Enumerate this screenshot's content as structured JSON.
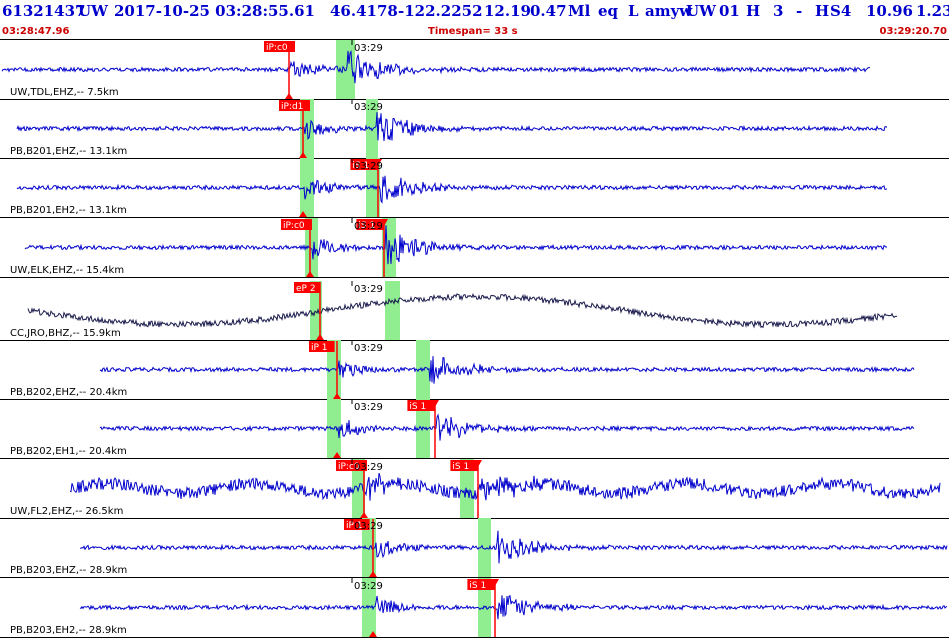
{
  "header": {
    "event_id": "61321437",
    "network": "UW",
    "origin_time": "2017-10-25 03:28:55.61",
    "latitude": "46.4178",
    "longitude": "-122.2252",
    "depth": "12.19",
    "magnitude": "0.47",
    "mag_type": "Ml",
    "event_type": "eq",
    "review": "L",
    "analyst": "amyw",
    "author_net": "UW",
    "version": "01",
    "gtype": "H",
    "npicks": "3",
    "dash": "-",
    "quality": "H",
    "solution": "S4",
    "gap": "10.96",
    "rms": "1.23"
  },
  "timebar": {
    "start": "03:28:47.96",
    "span": "Timespan=  33 s",
    "end": "03:29:20.70"
  },
  "colors": {
    "trace": "#0000cc",
    "trace_broadband": "#1a1a4d",
    "pick": "#ff0000",
    "window": "#90ee90",
    "header_text": "#0000cc",
    "timebar_text": "#cc0000",
    "separator": "#000000"
  },
  "tick_label": "03:29",
  "channels": [
    {
      "label": "UW,TDL,EHZ,-- 7.5km",
      "picks": [
        "iP:c0"
      ],
      "s_pick": "",
      "amp": "high"
    },
    {
      "label": "PB,B201,EHZ,-- 13.1km",
      "picks": [
        "iP:d1"
      ],
      "s_pick": "",
      "amp": "medium"
    },
    {
      "label": "PB,B201,EH2,-- 13.1km",
      "picks": [],
      "s_pick": "iS 1",
      "amp": "medium"
    },
    {
      "label": "UW,ELK,EHZ,-- 15.4km",
      "picks": [
        "iP:c0"
      ],
      "s_pick": "iS 1",
      "amp": "high"
    },
    {
      "label": "CC,JRO,BHZ,-- 15.9km",
      "picks": [
        "eP 2"
      ],
      "s_pick": "",
      "amp": "longperiod"
    },
    {
      "label": "PB,B202,EHZ,-- 20.4km",
      "picks": [
        "iP 1"
      ],
      "s_pick": "",
      "amp": "medium"
    },
    {
      "label": "PB,B202,EH1,-- 20.4km",
      "picks": [],
      "s_pick": "iS 1",
      "amp": "medium"
    },
    {
      "label": "UW,FL2,EHZ,-- 26.5km",
      "picks": [
        "iP:c0"
      ],
      "s_pick": "iS 1",
      "amp": "noisy"
    },
    {
      "label": "PB,B203,EHZ,-- 28.9km",
      "picks": [
        "iP 1"
      ],
      "s_pick": "",
      "amp": "medium"
    },
    {
      "label": "PB,B203,EH2,-- 28.9km",
      "picks": [],
      "s_pick": "iS 1",
      "amp": "medium"
    }
  ]
}
